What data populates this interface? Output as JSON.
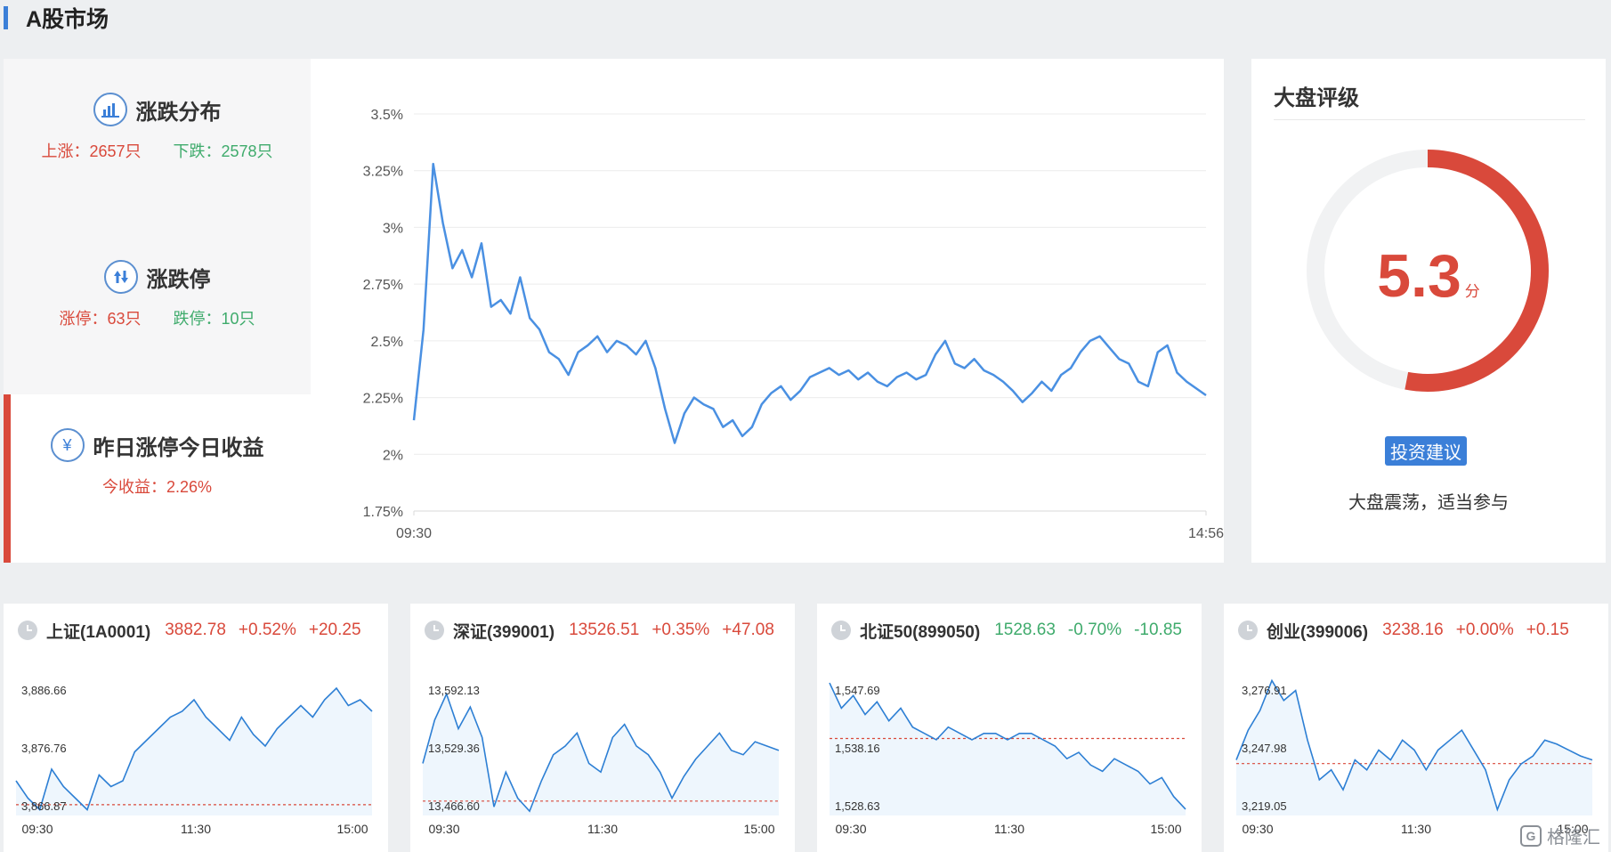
{
  "section": {
    "title": "A股市场"
  },
  "breadth": {
    "title": "涨跌分布",
    "up_label": "上涨：2657只",
    "down_label": "下跌：2578只"
  },
  "limits": {
    "title": "涨跌停",
    "up_label": "涨停：63只",
    "down_label": "跌停：10只"
  },
  "yesterday_limit_up": {
    "title": "昨日涨停今日收益",
    "return_label": "今收益：2.26%",
    "icon": "yen-icon"
  },
  "colors": {
    "up": "#d9493b",
    "down": "#3fab6c",
    "line": "#4a90e2",
    "accent": "#3b7fd8"
  },
  "chart_data": [
    {
      "type": "line",
      "name": "yesterday-limit-up-return",
      "y_ticks": [
        "3.5%",
        "3.25%",
        "3%",
        "2.75%",
        "2.5%",
        "2.25%",
        "2%",
        "1.75%"
      ],
      "ylim": [
        1.75,
        3.5
      ],
      "x_ticks": [
        "09:30",
        "14:56"
      ],
      "grid": true,
      "values": [
        2.15,
        2.55,
        3.28,
        3.02,
        2.82,
        2.9,
        2.78,
        2.93,
        2.65,
        2.68,
        2.62,
        2.78,
        2.6,
        2.55,
        2.45,
        2.42,
        2.35,
        2.45,
        2.48,
        2.52,
        2.45,
        2.5,
        2.48,
        2.44,
        2.5,
        2.38,
        2.2,
        2.05,
        2.18,
        2.25,
        2.22,
        2.2,
        2.12,
        2.15,
        2.08,
        2.12,
        2.22,
        2.27,
        2.3,
        2.24,
        2.28,
        2.34,
        2.36,
        2.38,
        2.35,
        2.37,
        2.33,
        2.36,
        2.32,
        2.3,
        2.34,
        2.36,
        2.33,
        2.35,
        2.44,
        2.5,
        2.4,
        2.38,
        2.42,
        2.37,
        2.35,
        2.32,
        2.28,
        2.23,
        2.27,
        2.32,
        2.28,
        2.35,
        2.38,
        2.45,
        2.5,
        2.52,
        2.47,
        2.42,
        2.4,
        2.32,
        2.3,
        2.45,
        2.48,
        2.36,
        2.32,
        2.29,
        2.26
      ]
    },
    {
      "type": "line",
      "name": "上证(1A0001)",
      "y_ticks": [
        "3,886.66",
        "3,876.76",
        "3,866.87"
      ],
      "ylim": [
        3865,
        3889
      ],
      "ref": 3866.87,
      "x_ticks": [
        "09:30",
        "11:30",
        "15:00"
      ],
      "values": [
        3871,
        3868,
        3866,
        3873,
        3870,
        3868,
        3866,
        3872,
        3870,
        3871,
        3876,
        3878,
        3880,
        3882,
        3883,
        3885,
        3882,
        3880,
        3878,
        3882,
        3879,
        3877,
        3880,
        3882,
        3884,
        3882,
        3885,
        3887,
        3884,
        3885,
        3883
      ]
    },
    {
      "type": "line",
      "name": "深证(399001)",
      "y_ticks": [
        "13,592.13",
        "13,529.36",
        "13,466.60"
      ],
      "ylim": [
        13450,
        13610
      ],
      "ref": 13466.6,
      "x_ticks": [
        "09:30",
        "11:30",
        "15:00"
      ],
      "values": [
        13510,
        13560,
        13590,
        13550,
        13575,
        13540,
        13460,
        13500,
        13470,
        13455,
        13490,
        13520,
        13530,
        13545,
        13510,
        13500,
        13540,
        13555,
        13530,
        13520,
        13500,
        13470,
        13495,
        13515,
        13530,
        13545,
        13525,
        13520,
        13535,
        13530,
        13525
      ]
    },
    {
      "type": "line",
      "name": "北证50(899050)",
      "y_ticks": [
        "1,547.69",
        "1,538.16",
        "1,528.63"
      ],
      "ylim": [
        1527,
        1549
      ],
      "ref": 1539.2,
      "x_ticks": [
        "09:30",
        "11:30",
        "15:00"
      ],
      "values": [
        1548,
        1544,
        1546,
        1543,
        1545,
        1542,
        1544,
        1541,
        1540,
        1539,
        1541,
        1540,
        1539,
        1540,
        1540,
        1539,
        1540,
        1540,
        1539,
        1538,
        1536,
        1537,
        1535,
        1534,
        1536,
        1535,
        1534,
        1532,
        1533,
        1530,
        1528
      ]
    },
    {
      "type": "line",
      "name": "创业(399006)",
      "y_ticks": [
        "3,276.91",
        "3,247.98",
        "3,219.05"
      ],
      "ylim": [
        3212,
        3282
      ],
      "ref": 3238.16,
      "x_ticks": [
        "09:30",
        "11:30",
        "15:00"
      ],
      "values": [
        3240,
        3255,
        3265,
        3280,
        3270,
        3275,
        3250,
        3230,
        3235,
        3225,
        3240,
        3235,
        3245,
        3240,
        3250,
        3245,
        3235,
        3245,
        3250,
        3255,
        3245,
        3235,
        3215,
        3230,
        3238,
        3242,
        3250,
        3248,
        3245,
        3242,
        3240
      ]
    }
  ],
  "rating": {
    "title": "大盘评级",
    "score": "5.3",
    "score_value": 5.3,
    "score_max": 10,
    "unit": "分",
    "advise_tag": "投资建议",
    "advise_text": "大盘震荡，适当参与"
  },
  "indices": [
    {
      "name": "上证(1A0001)",
      "price": "3882.78",
      "pct": "+0.52%",
      "chg": "+20.25",
      "dir": "up"
    },
    {
      "name": "深证(399001)",
      "price": "13526.51",
      "pct": "+0.35%",
      "chg": "+47.08",
      "dir": "up"
    },
    {
      "name": "北证50(899050)",
      "price": "1528.63",
      "pct": "-0.70%",
      "chg": "-10.85",
      "dir": "down"
    },
    {
      "name": "创业(399006)",
      "price": "3238.16",
      "pct": "+0.00%",
      "chg": "+0.15",
      "dir": "up"
    }
  ],
  "watermark": {
    "text": "格隆汇",
    "logo": "G"
  }
}
